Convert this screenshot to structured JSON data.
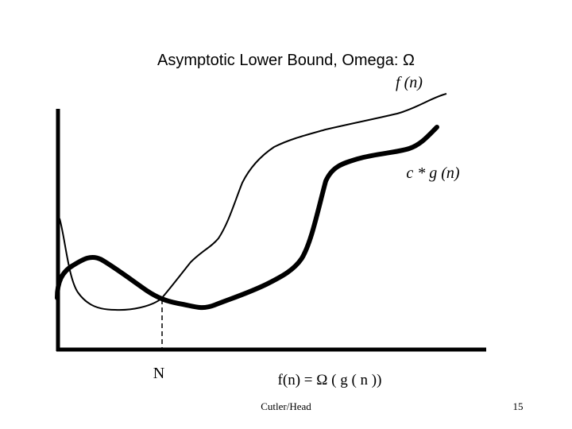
{
  "title": "Asymptotic Lower Bound, Omega: Ω",
  "curve_labels": {
    "f": "f (n)",
    "g": "c * g (n)"
  },
  "threshold_label": "N",
  "formula": "f(n) = Ω ( g ( n ))",
  "footer": {
    "author": "Cutler/Head",
    "page": "15"
  }
}
